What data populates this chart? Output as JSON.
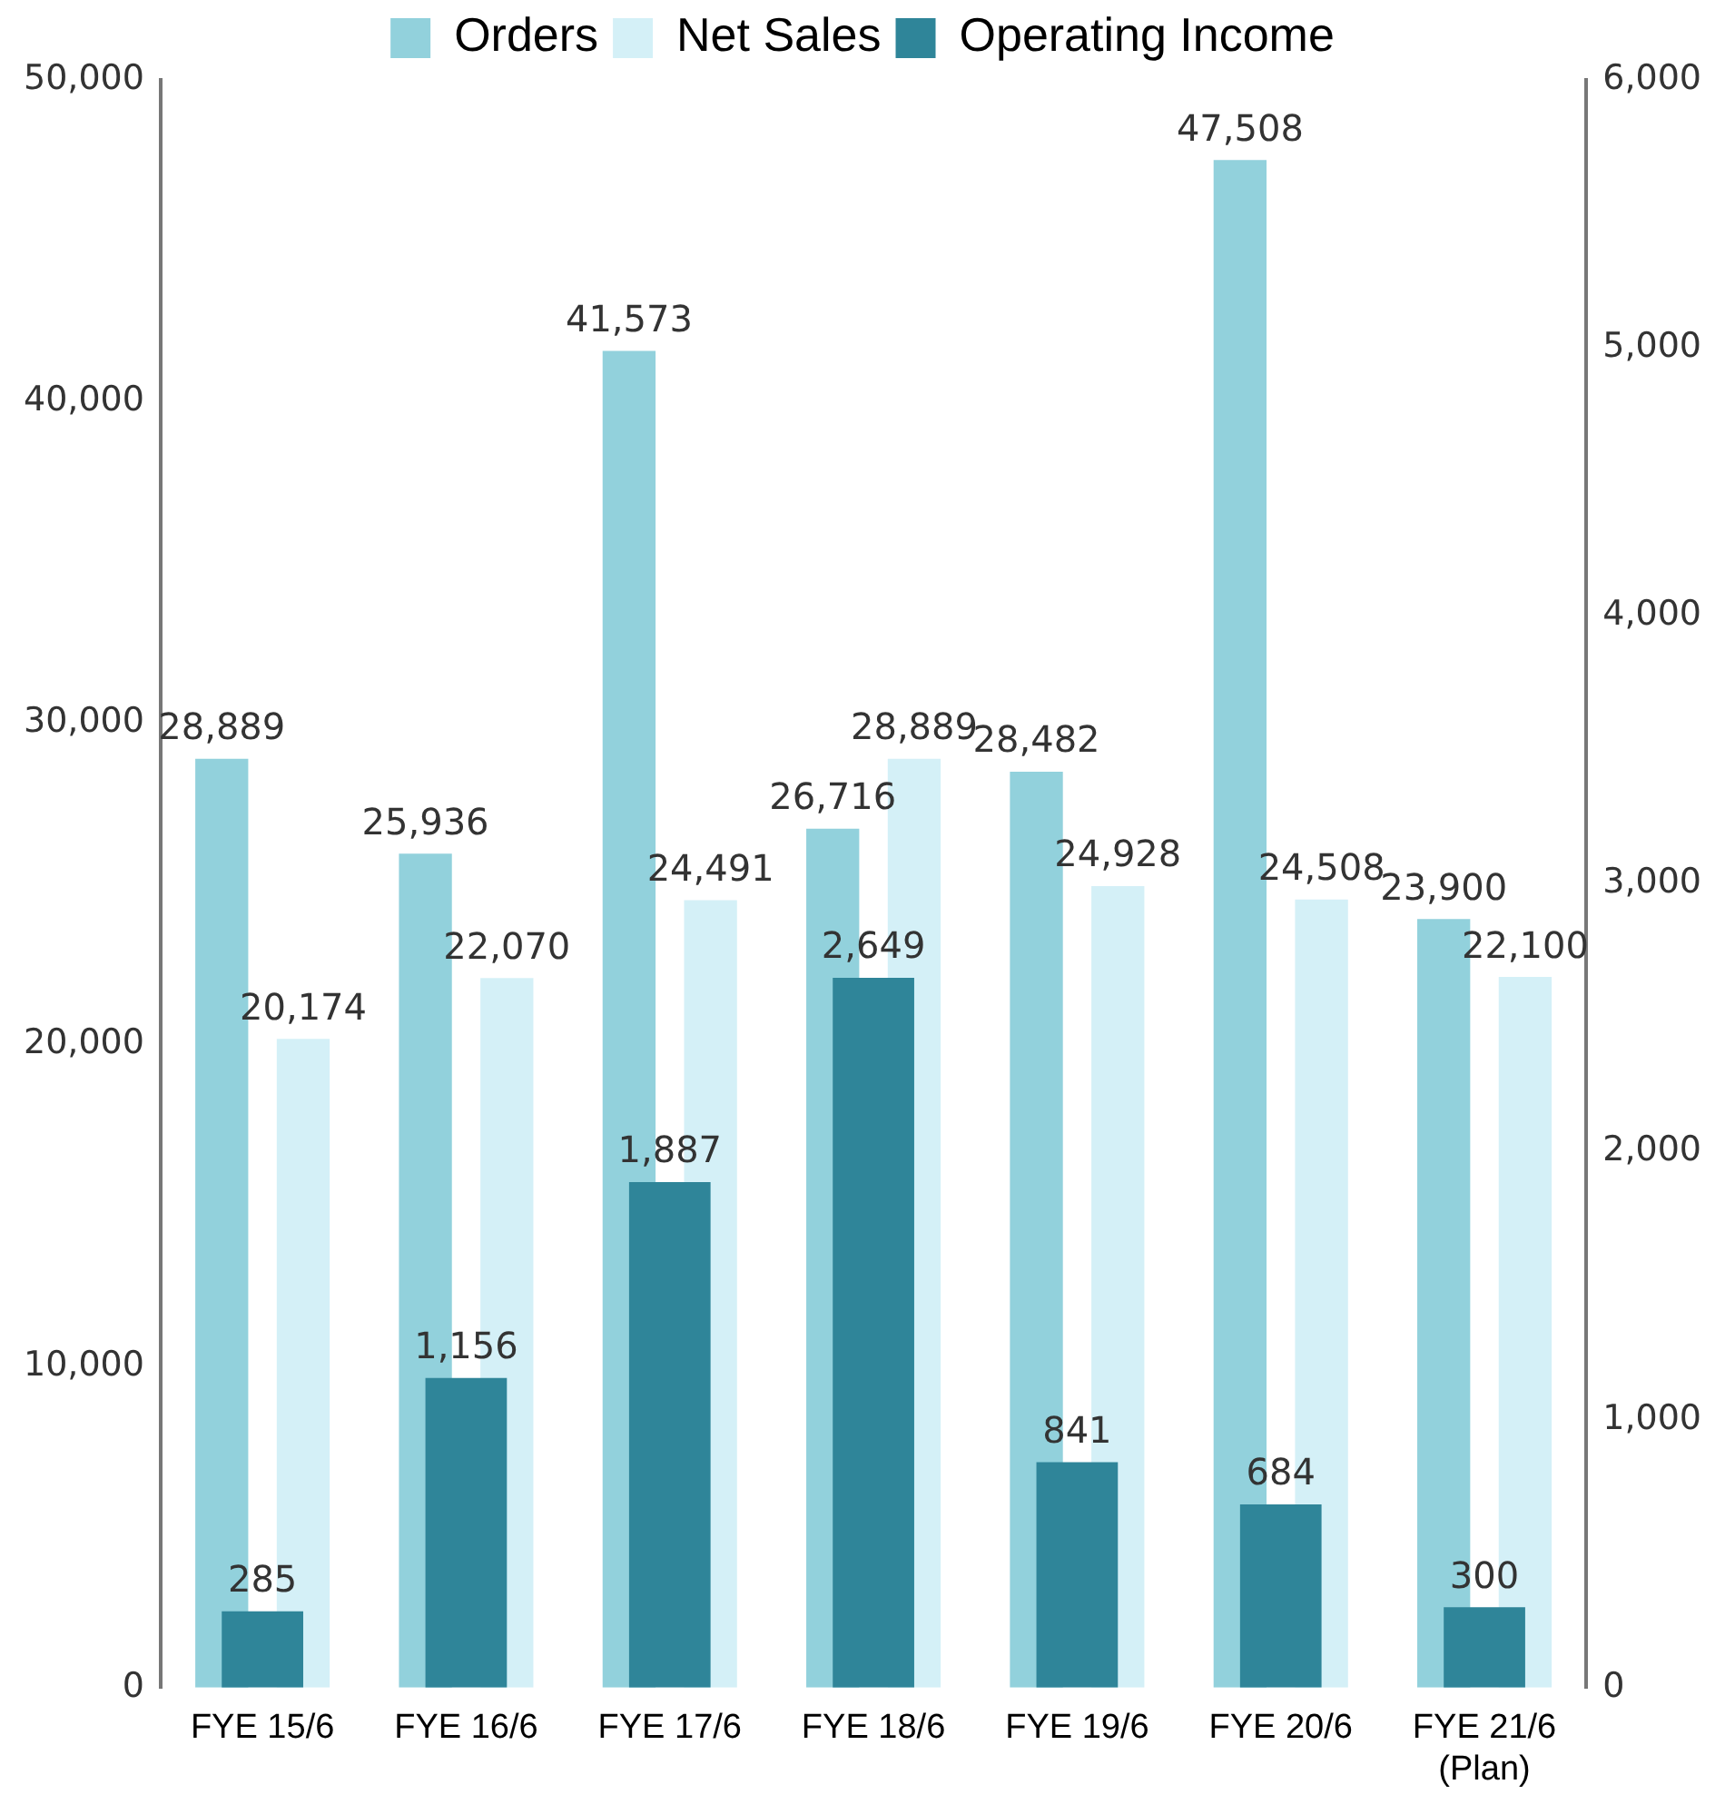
{
  "chart_data": {
    "type": "bar",
    "categories": [
      "FYE 15/6",
      "FYE 16/6",
      "FYE 17/6",
      "FYE 18/6",
      "FYE 19/6",
      "FYE 20/6",
      "FYE 21/6\n(Plan)"
    ],
    "series": [
      {
        "name": "Orders",
        "color": "#92d1dc",
        "values": [
          28889,
          25936,
          41573,
          26716,
          28482,
          47508,
          23900
        ],
        "value_labels": [
          "28,889",
          "25,936",
          "41,573",
          "26,716",
          "28,482",
          "47,508",
          "23,900"
        ]
      },
      {
        "name": "Net Sales",
        "color": "#d4f0f7",
        "values": [
          20174,
          22070,
          24491,
          28889,
          24928,
          24508,
          22100
        ],
        "value_labels": [
          "20,174",
          "22,070",
          "24,491",
          "28,889",
          "24,928",
          "24,508",
          "22,100"
        ]
      },
      {
        "name": "Operating Income",
        "color": "#2f8599",
        "axis": "y2",
        "values": [
          285,
          1156,
          1887,
          2649,
          841,
          684,
          300
        ],
        "value_labels": [
          "285",
          "1,156",
          "1,887",
          "2,649",
          "841",
          "684",
          "300"
        ]
      }
    ],
    "ylim": [
      0,
      50000
    ],
    "yticks": [
      {
        "value": 0,
        "label": "0"
      },
      {
        "value": 10000,
        "label": "10,000"
      },
      {
        "value": 20000,
        "label": "20,000"
      },
      {
        "value": 30000,
        "label": "30,000"
      },
      {
        "value": 40000,
        "label": "40,000"
      },
      {
        "value": 50000,
        "label": "50,000"
      }
    ],
    "y2lim": [
      0,
      6000
    ],
    "y2ticks": [
      {
        "value": 0,
        "label": "0"
      },
      {
        "value": 1000,
        "label": "1,000"
      },
      {
        "value": 2000,
        "label": "2,000"
      },
      {
        "value": 3000,
        "label": "3,000"
      },
      {
        "value": 4000,
        "label": "4,000"
      },
      {
        "value": 5000,
        "label": "5,000"
      },
      {
        "value": 6000,
        "label": "6,000"
      }
    ],
    "grid": false,
    "legend": "top"
  }
}
